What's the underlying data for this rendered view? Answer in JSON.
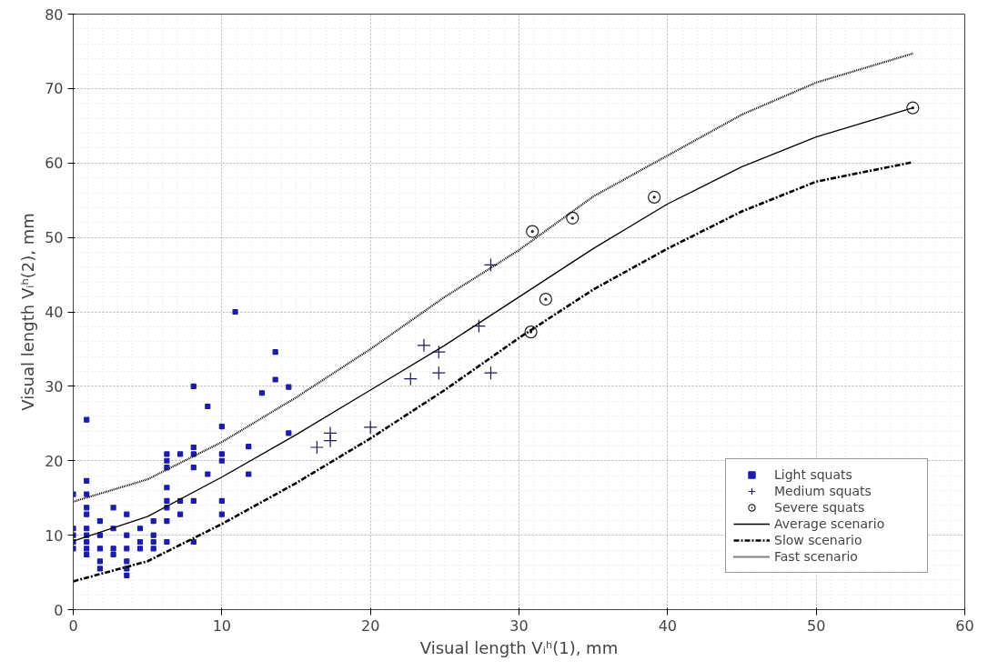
{
  "chart_data": {
    "type": "scatter",
    "xlabel": "Visual length Vᵢʰ(1), mm",
    "ylabel": "Visual length Vᵢʰ(2), mm",
    "xlim": [
      0,
      60
    ],
    "ylim": [
      0,
      80
    ],
    "xticks": [
      0,
      10,
      20,
      30,
      40,
      50,
      60
    ],
    "yticks": [
      0,
      10,
      20,
      30,
      40,
      50,
      60,
      70,
      80
    ],
    "grid": true,
    "legend": "bottom right",
    "series": [
      {
        "name": "Light squats",
        "marker": "square",
        "color": "#1c1ca8",
        "x": [
          0,
          0,
          0,
          0,
          0,
          0.9,
          0.9,
          0.9,
          0.9,
          0.9,
          0.9,
          0.9,
          0.9,
          0.9,
          0.9,
          1.8,
          1.8,
          1.8,
          1.8,
          1.8,
          2.7,
          2.7,
          2.7,
          2.7,
          3.6,
          3.6,
          3.6,
          3.6,
          3.6,
          3.6,
          4.5,
          4.5,
          4.5,
          5.4,
          5.4,
          5.4,
          5.4,
          6.3,
          6.3,
          6.3,
          6.3,
          6.3,
          6.3,
          6.3,
          6.3,
          7.2,
          7.2,
          7.2,
          8.1,
          8.1,
          8.1,
          8.1,
          8.1,
          8.1,
          9.05,
          9.05,
          10,
          10,
          10,
          10,
          10,
          10.9,
          11.8,
          11.8,
          12.7,
          13.6,
          13.6,
          14.5,
          14.5
        ],
        "values": [
          15.5,
          10.9,
          10.0,
          9.1,
          8.2,
          25.5,
          17.3,
          15.5,
          13.7,
          12.8,
          10.9,
          10.0,
          9.1,
          8.2,
          7.4,
          11.9,
          10.0,
          8.2,
          6.5,
          5.5,
          13.7,
          10.9,
          8.2,
          7.4,
          12.8,
          10.0,
          8.2,
          6.5,
          5.5,
          4.6,
          10.9,
          9.1,
          8.2,
          11.9,
          10.0,
          9.1,
          8.2,
          20.9,
          20.0,
          19.1,
          16.4,
          14.6,
          13.7,
          11.9,
          9.1,
          20.9,
          14.6,
          12.8,
          30.0,
          21.8,
          20.9,
          19.1,
          14.6,
          9.1,
          27.3,
          18.2,
          24.6,
          20.9,
          20.0,
          14.6,
          12.8,
          40.0,
          21.9,
          18.2,
          29.1,
          34.6,
          30.9,
          29.9,
          23.7
        ]
      },
      {
        "name": "Medium squats",
        "marker": "cross",
        "color": "#1a1a5e",
        "x": [
          16.4,
          17.3,
          17.3,
          20.0,
          22.7,
          23.6,
          24.6,
          24.6,
          27.3,
          28.1,
          28.1
        ],
        "values": [
          21.8,
          23.7,
          22.7,
          24.5,
          31.0,
          35.5,
          34.6,
          31.8,
          38.1,
          46.3,
          31.8
        ]
      },
      {
        "name": "Severe squats",
        "marker": "circle",
        "color": "#222222",
        "x": [
          30.8,
          30.9,
          31.8,
          33.6,
          39.1,
          56.5
        ],
        "values": [
          37.3,
          50.8,
          41.7,
          52.6,
          55.4,
          67.4
        ]
      },
      {
        "name": "Average scenario",
        "type": "line",
        "line_style": "solid",
        "color": "#000000",
        "x": [
          0,
          5,
          10,
          15,
          20,
          25,
          30,
          35,
          40,
          45,
          50,
          56.5
        ],
        "values": [
          9.2,
          12.5,
          17.8,
          23.5,
          29.5,
          35.5,
          42.0,
          48.5,
          54.5,
          59.5,
          63.5,
          67.4
        ]
      },
      {
        "name": "Slow scenario",
        "type": "line",
        "line_style": "dashed",
        "color": "#000000",
        "x": [
          0,
          5,
          10,
          15,
          20,
          25,
          30,
          35,
          40,
          45,
          50,
          56.5
        ],
        "values": [
          3.8,
          6.5,
          11.5,
          17.0,
          23.0,
          29.5,
          36.5,
          43.0,
          48.5,
          53.5,
          57.5,
          60.1
        ]
      },
      {
        "name": "Fast scenario",
        "type": "line",
        "line_style": "dotted",
        "color": "#000000",
        "x": [
          0,
          5,
          10,
          15,
          20,
          25,
          30,
          35,
          40,
          45,
          50,
          56.5
        ],
        "values": [
          14.5,
          17.5,
          22.5,
          28.5,
          35.0,
          42.0,
          48.3,
          55.5,
          61.0,
          66.5,
          70.8,
          74.7
        ]
      }
    ]
  }
}
